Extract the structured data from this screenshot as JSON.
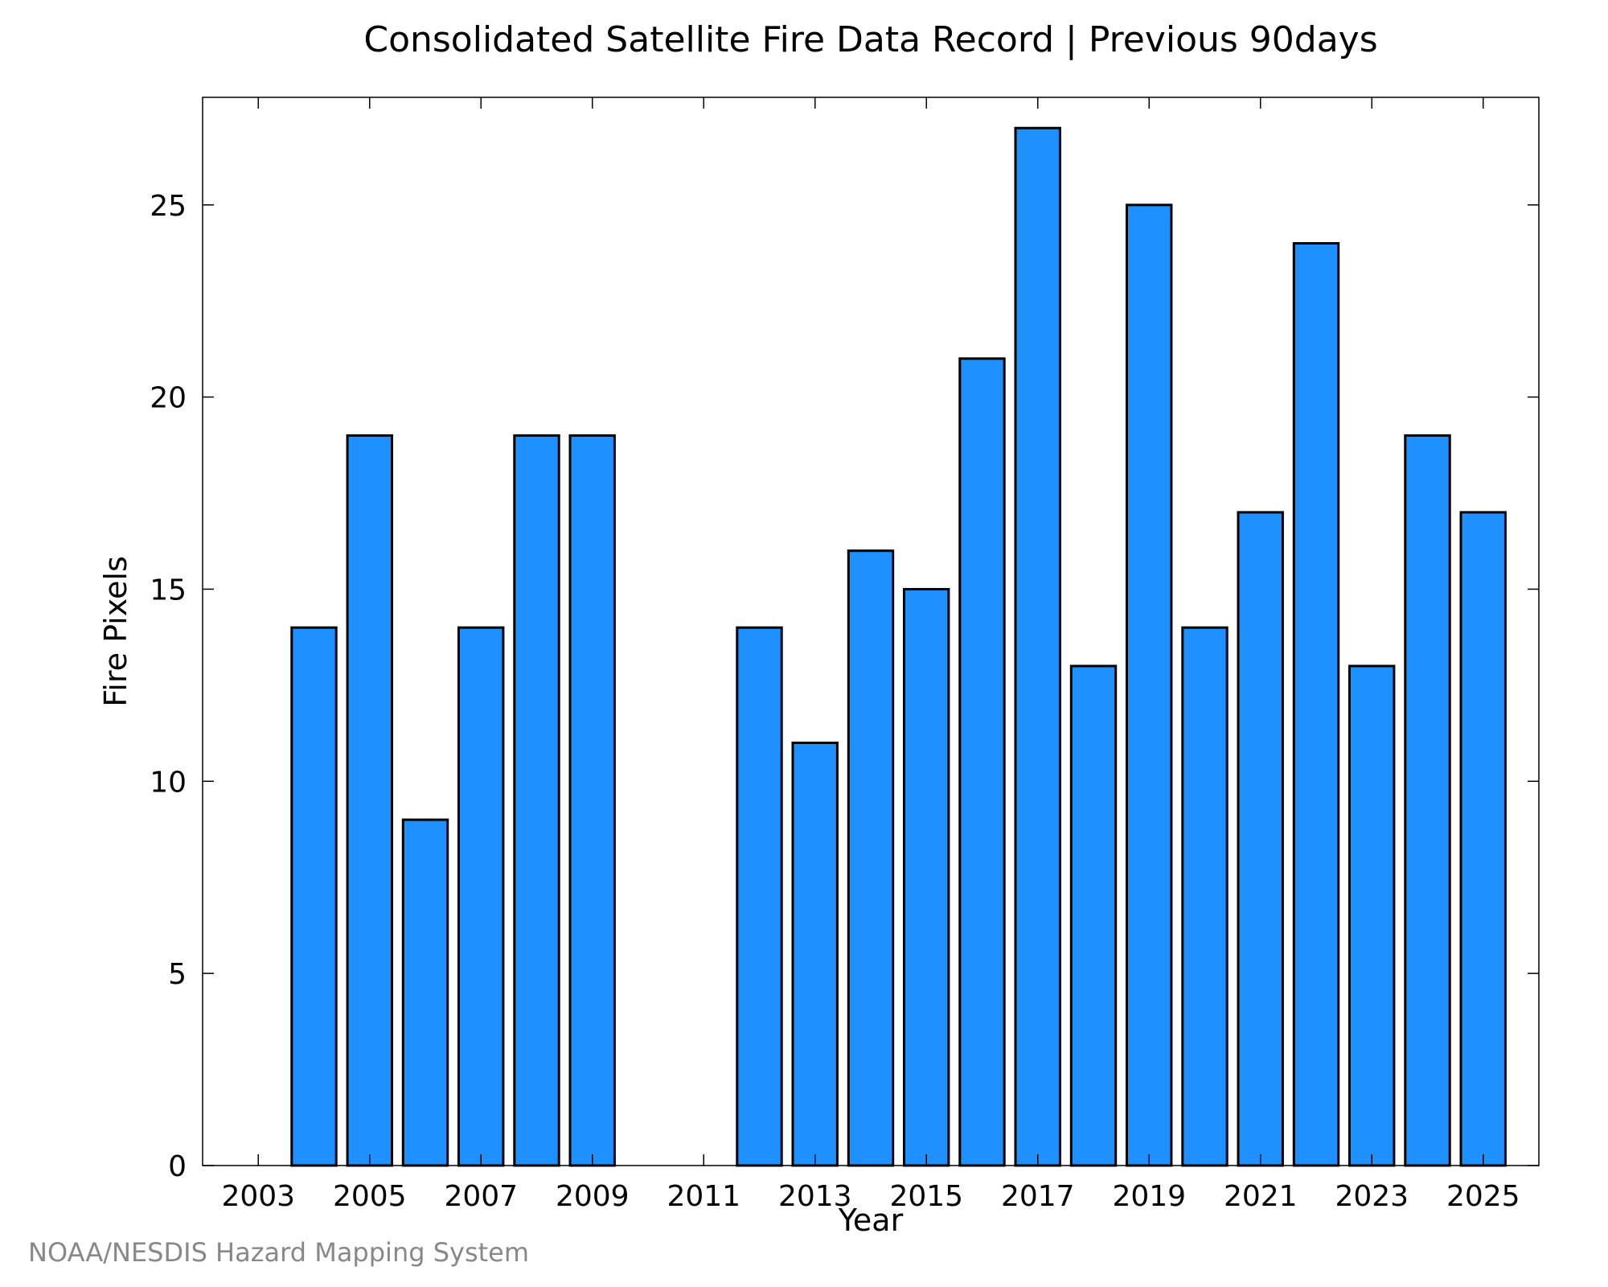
{
  "chart_data": {
    "type": "bar",
    "title": "Consolidated Satellite Fire Data Record | Previous 90days",
    "xlabel": "Year",
    "ylabel": "Fire Pixels",
    "categories": [
      "2003",
      "2004",
      "2005",
      "2006",
      "2007",
      "2008",
      "2009",
      "2010",
      "2011",
      "2012",
      "2013",
      "2014",
      "2015",
      "2016",
      "2017",
      "2018",
      "2019",
      "2020",
      "2021",
      "2022",
      "2023",
      "2024",
      "2025"
    ],
    "values": [
      0,
      14,
      19,
      9,
      14,
      19,
      19,
      0,
      0,
      14,
      11,
      16,
      15,
      21,
      27,
      13,
      25,
      14,
      17,
      24,
      13,
      19,
      17
    ],
    "x_tick_labels": [
      "2003",
      "2005",
      "2007",
      "2009",
      "2011",
      "2013",
      "2015",
      "2017",
      "2019",
      "2021",
      "2023",
      "2025"
    ],
    "y_tick_labels": [
      "0",
      "5",
      "10",
      "15",
      "20",
      "25"
    ],
    "ylim": [
      0,
      27.8
    ],
    "grid": false,
    "bar_color": "#1e90ff"
  },
  "credit": "NOAA/NESDIS Hazard Mapping System"
}
